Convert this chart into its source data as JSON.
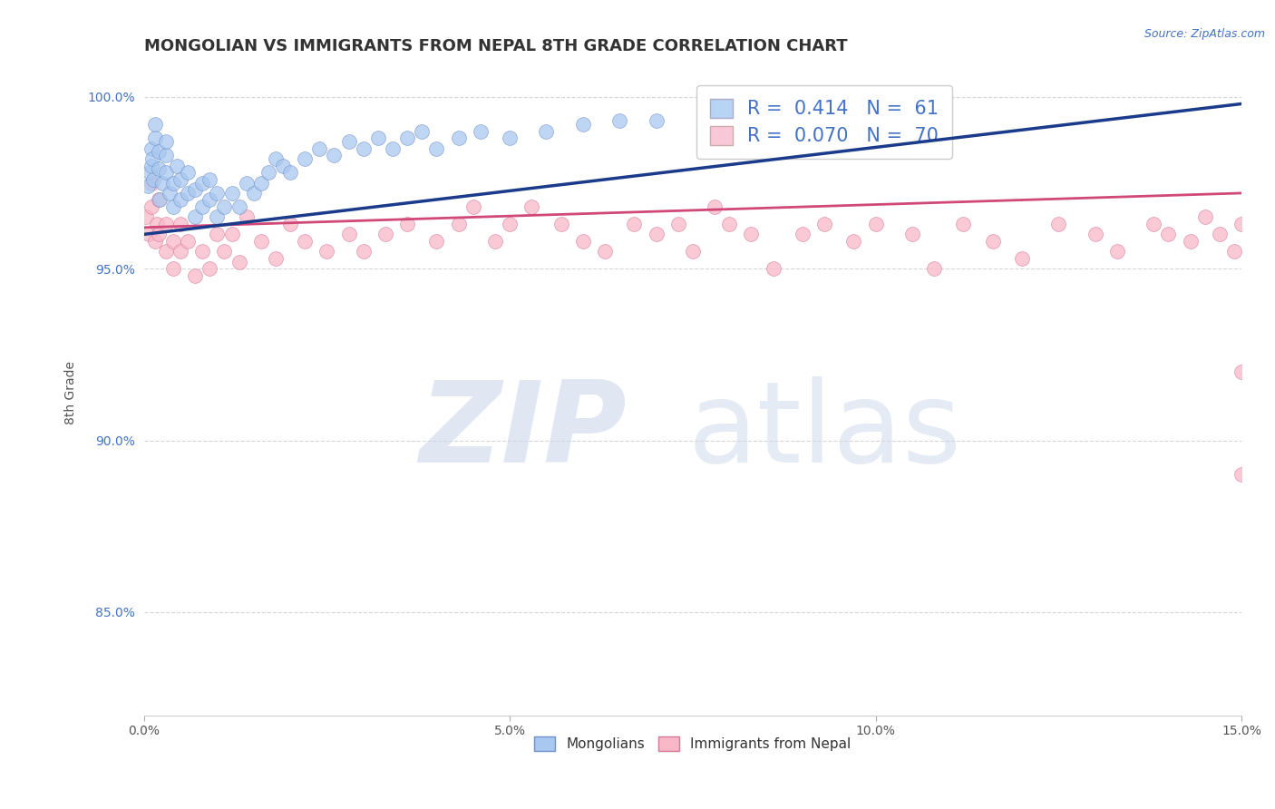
{
  "title": "MONGOLIAN VS IMMIGRANTS FROM NEPAL 8TH GRADE CORRELATION CHART",
  "source_text": "Source: ZipAtlas.com",
  "ylabel": "8th Grade",
  "xlim": [
    0.0,
    0.15
  ],
  "ylim": [
    0.82,
    1.008
  ],
  "xticks": [
    0.0,
    0.05,
    0.1,
    0.15
  ],
  "xticklabels": [
    "0.0%",
    "5.0%",
    "10.0%",
    "15.0%"
  ],
  "yticks": [
    0.85,
    0.9,
    0.95,
    1.0
  ],
  "yticklabels": [
    "85.0%",
    "90.0%",
    "95.0%",
    "100.0%"
  ],
  "mongolian_R": 0.414,
  "mongolian_N": 61,
  "nepal_R": 0.07,
  "nepal_N": 70,
  "blue_color": "#a8c8f0",
  "blue_edge_color": "#7090c8",
  "blue_line_color": "#1a3a8a",
  "pink_color": "#f8b8c8",
  "pink_edge_color": "#d87898",
  "pink_line_color": "#d04878",
  "legend_box_blue": "#b8d4f4",
  "legend_box_pink": "#f8c8d8",
  "grid_color": "#cccccc",
  "background_color": "#ffffff",
  "title_fontsize": 13,
  "axis_fontsize": 10,
  "tick_fontsize": 10,
  "blue_scatter_x": [
    0.0005,
    0.0008,
    0.001,
    0.001,
    0.0012,
    0.0013,
    0.0015,
    0.0015,
    0.002,
    0.002,
    0.0022,
    0.0025,
    0.003,
    0.003,
    0.003,
    0.0035,
    0.004,
    0.004,
    0.0045,
    0.005,
    0.005,
    0.006,
    0.006,
    0.007,
    0.007,
    0.008,
    0.008,
    0.009,
    0.009,
    0.01,
    0.01,
    0.011,
    0.012,
    0.013,
    0.014,
    0.015,
    0.016,
    0.017,
    0.018,
    0.019,
    0.02,
    0.022,
    0.024,
    0.026,
    0.028,
    0.03,
    0.032,
    0.034,
    0.036,
    0.038,
    0.04,
    0.043,
    0.046,
    0.05,
    0.055,
    0.06,
    0.065,
    0.07,
    0.078,
    0.085,
    0.092
  ],
  "blue_scatter_y": [
    0.974,
    0.978,
    0.98,
    0.985,
    0.982,
    0.976,
    0.988,
    0.992,
    0.979,
    0.984,
    0.97,
    0.975,
    0.978,
    0.983,
    0.987,
    0.972,
    0.968,
    0.975,
    0.98,
    0.97,
    0.976,
    0.972,
    0.978,
    0.965,
    0.973,
    0.968,
    0.975,
    0.97,
    0.976,
    0.965,
    0.972,
    0.968,
    0.972,
    0.968,
    0.975,
    0.972,
    0.975,
    0.978,
    0.982,
    0.98,
    0.978,
    0.982,
    0.985,
    0.983,
    0.987,
    0.985,
    0.988,
    0.985,
    0.988,
    0.99,
    0.985,
    0.988,
    0.99,
    0.988,
    0.99,
    0.992,
    0.993,
    0.993,
    0.996,
    0.997,
    0.998
  ],
  "pink_scatter_x": [
    0.0003,
    0.0006,
    0.001,
    0.001,
    0.0015,
    0.0018,
    0.002,
    0.002,
    0.003,
    0.003,
    0.004,
    0.004,
    0.005,
    0.005,
    0.006,
    0.007,
    0.008,
    0.009,
    0.01,
    0.011,
    0.012,
    0.013,
    0.014,
    0.016,
    0.018,
    0.02,
    0.022,
    0.025,
    0.028,
    0.03,
    0.033,
    0.036,
    0.04,
    0.043,
    0.045,
    0.048,
    0.05,
    0.053,
    0.057,
    0.06,
    0.063,
    0.067,
    0.07,
    0.073,
    0.075,
    0.078,
    0.08,
    0.083,
    0.086,
    0.09,
    0.093,
    0.097,
    0.1,
    0.105,
    0.108,
    0.112,
    0.116,
    0.12,
    0.125,
    0.13,
    0.133,
    0.138,
    0.14,
    0.143,
    0.145,
    0.147,
    0.149,
    0.15,
    0.15,
    0.15
  ],
  "pink_scatter_y": [
    0.965,
    0.96,
    0.968,
    0.975,
    0.958,
    0.963,
    0.97,
    0.96,
    0.955,
    0.963,
    0.958,
    0.95,
    0.955,
    0.963,
    0.958,
    0.948,
    0.955,
    0.95,
    0.96,
    0.955,
    0.96,
    0.952,
    0.965,
    0.958,
    0.953,
    0.963,
    0.958,
    0.955,
    0.96,
    0.955,
    0.96,
    0.963,
    0.958,
    0.963,
    0.968,
    0.958,
    0.963,
    0.968,
    0.963,
    0.958,
    0.955,
    0.963,
    0.96,
    0.963,
    0.955,
    0.968,
    0.963,
    0.96,
    0.95,
    0.96,
    0.963,
    0.958,
    0.963,
    0.96,
    0.95,
    0.963,
    0.958,
    0.953,
    0.963,
    0.96,
    0.955,
    0.963,
    0.96,
    0.958,
    0.965,
    0.96,
    0.955,
    0.963,
    0.89,
    0.92
  ],
  "blue_trend_x": [
    0.0,
    0.15
  ],
  "blue_trend_y": [
    0.96,
    0.998
  ],
  "pink_trend_x": [
    0.0,
    0.15
  ],
  "pink_trend_y": [
    0.962,
    0.972
  ]
}
